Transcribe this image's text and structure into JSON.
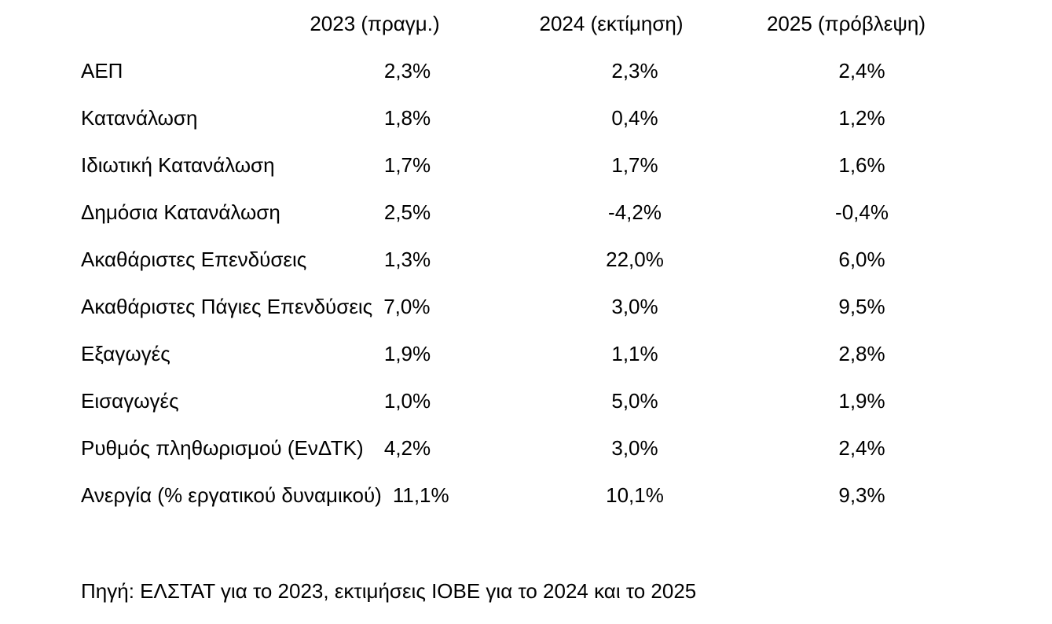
{
  "table": {
    "columns": [
      "2023 (πραγμ.)",
      "2024 (εκτίμηση)",
      "2025 (πρόβλεψη)"
    ],
    "rows": [
      {
        "label": "ΑΕΠ",
        "v2023": "2,3%",
        "v2024": "2,3%",
        "v2025": "2,4%"
      },
      {
        "label": "Κατανάλωση",
        "v2023": "1,8%",
        "v2024": "0,4%",
        "v2025": "1,2%"
      },
      {
        "label": "Ιδιωτική Κατανάλωση",
        "v2023": "1,7%",
        "v2024": "1,7%",
        "v2025": "1,6%"
      },
      {
        "label": "Δημόσια Κατανάλωση",
        "v2023": "2,5%",
        "v2024": "-4,2%",
        "v2025": "-0,4%"
      },
      {
        "label": "Ακαθάριστες Επενδύσεις",
        "v2023": "1,3%",
        "v2024": "22,0%",
        "v2025": "6,0%"
      },
      {
        "label": "Ακαθάριστες Πάγιες Επενδύσεις",
        "v2023": "7,0%",
        "v2024": "3,0%",
        "v2025": "9,5%"
      },
      {
        "label": "Εξαγωγές",
        "v2023": "1,9%",
        "v2024": "1,1%",
        "v2025": "2,8%"
      },
      {
        "label": "Εισαγωγές",
        "v2023": "1,0%",
        "v2024": "5,0%",
        "v2025": "1,9%"
      },
      {
        "label": "Ρυθμός πληθωρισμού (ΕνΔΤΚ)",
        "v2023": "4,2%",
        "v2024": "3,0%",
        "v2025": "2,4%"
      },
      {
        "label": "Ανεργία (% εργατικού δυναμικού)",
        "v2023": "11,1%",
        "v2024": "10,1%",
        "v2025": "9,3%"
      }
    ],
    "source_note": "Πηγή: ΕΛΣΤΑΤ για το 2023, εκτιμήσεις ΙΟΒΕ για το 2024 και το 2025",
    "text_color": "#000000",
    "background_color": "#ffffff"
  }
}
